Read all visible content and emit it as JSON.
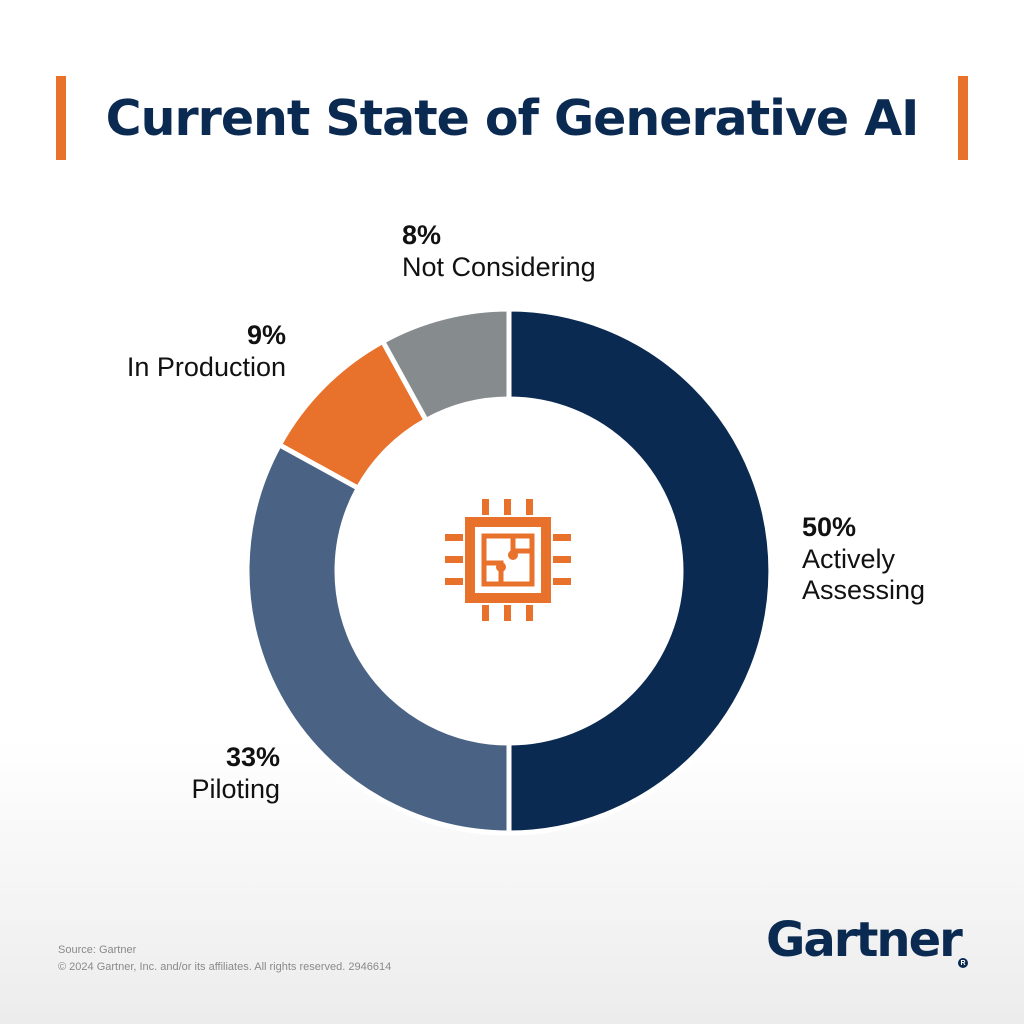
{
  "header": {
    "title": "Current State of Generative AI"
  },
  "chart_data": {
    "type": "pie",
    "subtype": "donut",
    "title": "Current State of Generative AI",
    "categories": [
      "Actively Assessing",
      "Piloting",
      "In Production",
      "Not Considering"
    ],
    "values": [
      50,
      33,
      9,
      8
    ],
    "value_labels": [
      "50%",
      "33%",
      "9%",
      "8%"
    ],
    "colors": [
      "#0b2a52",
      "#4a6283",
      "#e8712c",
      "#868b8e"
    ],
    "legend": "none",
    "center_icon": "chip-icon"
  },
  "footer": {
    "source": "Source: Gartner",
    "copyright": "© 2024 Gartner, Inc. and/or its affiliates. All rights reserved. 2946614",
    "brand": "Gartner",
    "brand_mark": "R"
  }
}
